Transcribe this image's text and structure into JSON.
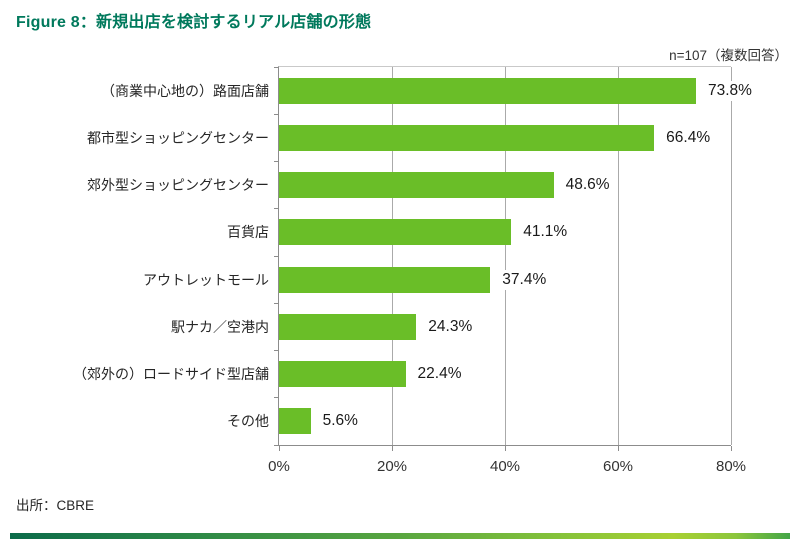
{
  "title": "Figure 8：新規出店を検討するリアル店舗の形態",
  "note": "n=107（複数回答）",
  "source": "出所：CBRE",
  "colors": {
    "bar": "#6abe28",
    "title": "#00795c",
    "grid": "#aaaaaa",
    "axis": "#8c8c8c",
    "text": "#262626"
  },
  "chart_data": {
    "type": "bar",
    "orientation": "horizontal",
    "title": "Figure 8：新規出店を検討するリアル店舗の形態",
    "subtitle": "n=107（複数回答）",
    "categories": [
      "（商業中心地の）路面店舗",
      "都市型ショッピングセンター",
      "郊外型ショッピングセンター",
      "百貨店",
      "アウトレットモール",
      "駅ナカ／空港内",
      "（郊外の）ロードサイド型店舗",
      "その他"
    ],
    "values": [
      73.8,
      66.4,
      48.6,
      41.1,
      37.4,
      24.3,
      22.4,
      5.6
    ],
    "value_labels": [
      "73.8%",
      "66.4%",
      "48.6%",
      "41.1%",
      "37.4%",
      "24.3%",
      "22.4%",
      "5.6%"
    ],
    "xlabel": "",
    "ylabel": "",
    "xlim": [
      0,
      80
    ],
    "x_ticks": [
      "0%",
      "20%",
      "40%",
      "60%",
      "80%"
    ],
    "x_tick_values": [
      0,
      20,
      40,
      60,
      80
    ],
    "grid": "vertical",
    "legend": "none",
    "source": "出所：CBRE"
  }
}
